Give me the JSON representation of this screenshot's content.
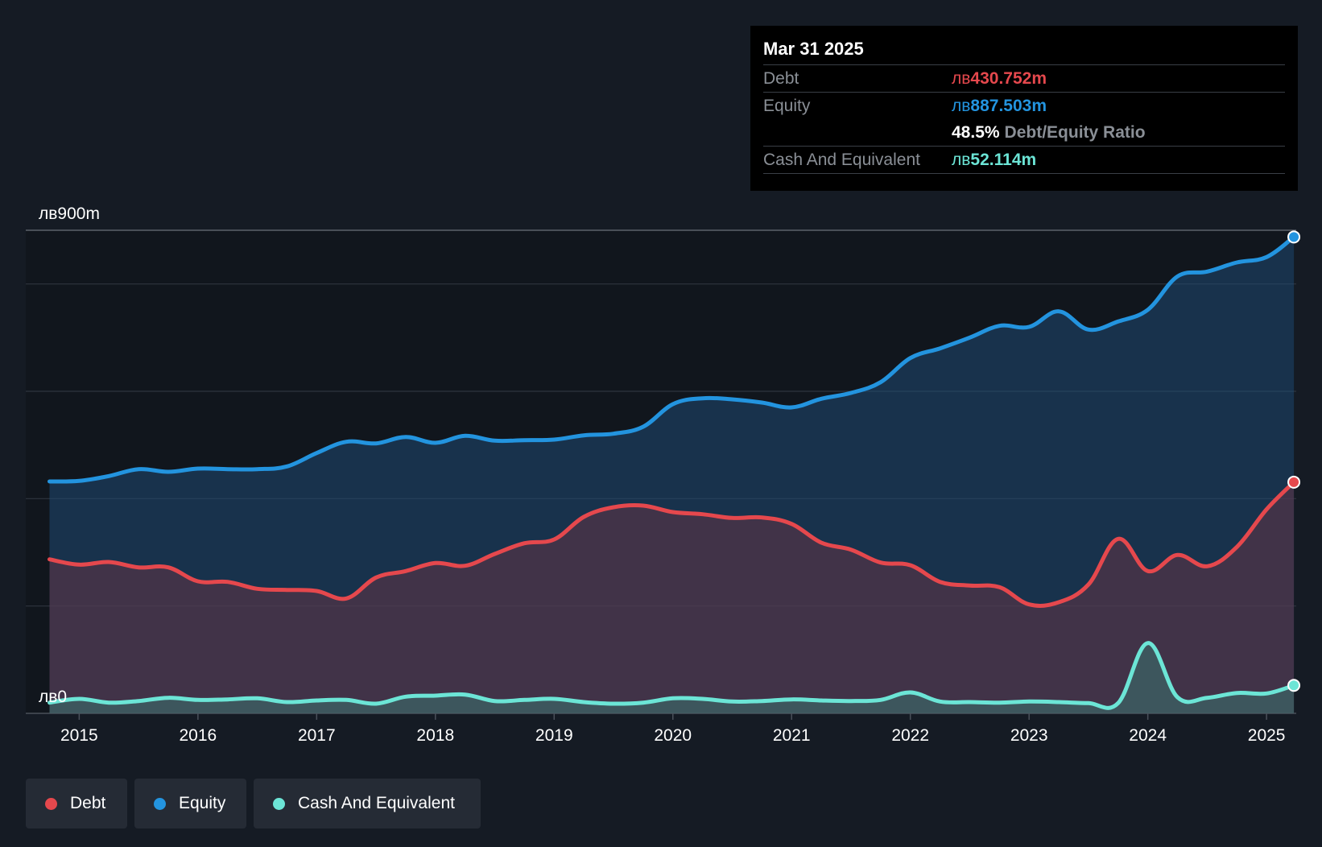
{
  "tooltip": {
    "date": "Mar 31 2025",
    "debt_label": "Debt",
    "debt_currency": "лв",
    "debt_value": "430.752m",
    "equity_label": "Equity",
    "equity_currency": "лв",
    "equity_value": "887.503m",
    "ratio_value": "48.5%",
    "ratio_label": "Debt/Equity Ratio",
    "cash_label": "Cash And Equivalent",
    "cash_currency": "лв",
    "cash_value": "52.114m"
  },
  "legend": {
    "debt": "Debt",
    "equity": "Equity",
    "cash": "Cash And Equivalent"
  },
  "colors": {
    "background": "#151b24",
    "debt": "#e5484d",
    "equity": "#2394df",
    "cash": "#6ce5d6",
    "grid": "#353b45"
  },
  "chart_data": {
    "type": "area",
    "y_top_label": "лв900m",
    "y_bottom_label": "лв0",
    "ylim": [
      0,
      900
    ],
    "gridlines": [
      0,
      200,
      400,
      600,
      800,
      900
    ],
    "x_range": [
      2014.55,
      2025.25
    ],
    "x_ticks": [
      2015,
      2016,
      2017,
      2018,
      2019,
      2020,
      2021,
      2022,
      2023,
      2024,
      2025
    ],
    "x_tick_labels": [
      "2015",
      "2016",
      "2017",
      "2018",
      "2019",
      "2020",
      "2021",
      "2022",
      "2023",
      "2024",
      "2025"
    ],
    "series": [
      {
        "name": "Equity",
        "color": "#2394df",
        "points": [
          [
            2014.75,
            432
          ],
          [
            2015.0,
            433
          ],
          [
            2015.25,
            442
          ],
          [
            2015.5,
            455
          ],
          [
            2015.75,
            450
          ],
          [
            2016.0,
            456
          ],
          [
            2016.25,
            455
          ],
          [
            2016.5,
            455
          ],
          [
            2016.75,
            460
          ],
          [
            2017.0,
            485
          ],
          [
            2017.25,
            506
          ],
          [
            2017.5,
            503
          ],
          [
            2017.75,
            515
          ],
          [
            2018.0,
            504
          ],
          [
            2018.25,
            517
          ],
          [
            2018.5,
            508
          ],
          [
            2018.75,
            509
          ],
          [
            2019.0,
            510
          ],
          [
            2019.25,
            518
          ],
          [
            2019.5,
            521
          ],
          [
            2019.75,
            534
          ],
          [
            2020.0,
            576
          ],
          [
            2020.25,
            587
          ],
          [
            2020.5,
            585
          ],
          [
            2020.75,
            579
          ],
          [
            2021.0,
            570
          ],
          [
            2021.25,
            586
          ],
          [
            2021.5,
            597
          ],
          [
            2021.75,
            617
          ],
          [
            2022.0,
            662
          ],
          [
            2022.25,
            680
          ],
          [
            2022.5,
            700
          ],
          [
            2022.75,
            722
          ],
          [
            2023.0,
            720
          ],
          [
            2023.25,
            749
          ],
          [
            2023.5,
            715
          ],
          [
            2023.75,
            730
          ],
          [
            2024.0,
            752
          ],
          [
            2024.25,
            814
          ],
          [
            2024.5,
            823
          ],
          [
            2024.75,
            840
          ],
          [
            2025.0,
            850
          ],
          [
            2025.23,
            887.503
          ]
        ]
      },
      {
        "name": "Debt",
        "color": "#e5484d",
        "points": [
          [
            2014.75,
            287
          ],
          [
            2015.0,
            277
          ],
          [
            2015.25,
            282
          ],
          [
            2015.5,
            272
          ],
          [
            2015.75,
            272
          ],
          [
            2016.0,
            246
          ],
          [
            2016.25,
            245
          ],
          [
            2016.5,
            232
          ],
          [
            2016.75,
            230
          ],
          [
            2017.0,
            228
          ],
          [
            2017.25,
            214
          ],
          [
            2017.5,
            253
          ],
          [
            2017.75,
            265
          ],
          [
            2018.0,
            280
          ],
          [
            2018.25,
            275
          ],
          [
            2018.5,
            297
          ],
          [
            2018.75,
            317
          ],
          [
            2019.0,
            324
          ],
          [
            2019.25,
            366
          ],
          [
            2019.5,
            384
          ],
          [
            2019.75,
            387
          ],
          [
            2020.0,
            375
          ],
          [
            2020.25,
            371
          ],
          [
            2020.5,
            364
          ],
          [
            2020.75,
            365
          ],
          [
            2021.0,
            353
          ],
          [
            2021.25,
            318
          ],
          [
            2021.5,
            305
          ],
          [
            2021.75,
            281
          ],
          [
            2022.0,
            276
          ],
          [
            2022.25,
            245
          ],
          [
            2022.5,
            238
          ],
          [
            2022.75,
            235
          ],
          [
            2023.0,
            203
          ],
          [
            2023.25,
            207
          ],
          [
            2023.5,
            240
          ],
          [
            2023.75,
            325
          ],
          [
            2024.0,
            265
          ],
          [
            2024.25,
            295
          ],
          [
            2024.5,
            274
          ],
          [
            2024.75,
            310
          ],
          [
            2025.0,
            380
          ],
          [
            2025.23,
            430.752
          ]
        ]
      },
      {
        "name": "Cash And Equivalent",
        "color": "#6ce5d6",
        "points": [
          [
            2014.75,
            20
          ],
          [
            2015.0,
            27
          ],
          [
            2015.25,
            20
          ],
          [
            2015.5,
            23
          ],
          [
            2015.75,
            29
          ],
          [
            2016.0,
            25
          ],
          [
            2016.25,
            26
          ],
          [
            2016.5,
            28
          ],
          [
            2016.75,
            21
          ],
          [
            2017.0,
            24
          ],
          [
            2017.25,
            25
          ],
          [
            2017.5,
            18
          ],
          [
            2017.75,
            31
          ],
          [
            2018.0,
            33
          ],
          [
            2018.25,
            35
          ],
          [
            2018.5,
            23
          ],
          [
            2018.75,
            25
          ],
          [
            2019.0,
            27
          ],
          [
            2019.25,
            21
          ],
          [
            2019.5,
            18
          ],
          [
            2019.75,
            20
          ],
          [
            2020.0,
            28
          ],
          [
            2020.25,
            27
          ],
          [
            2020.5,
            22
          ],
          [
            2020.75,
            23
          ],
          [
            2021.0,
            26
          ],
          [
            2021.25,
            24
          ],
          [
            2021.5,
            23
          ],
          [
            2021.75,
            25
          ],
          [
            2022.0,
            39
          ],
          [
            2022.25,
            22
          ],
          [
            2022.5,
            21
          ],
          [
            2022.75,
            20
          ],
          [
            2023.0,
            22
          ],
          [
            2023.25,
            21
          ],
          [
            2023.5,
            19
          ],
          [
            2023.75,
            19
          ],
          [
            2024.0,
            131
          ],
          [
            2024.25,
            30
          ],
          [
            2024.5,
            29
          ],
          [
            2024.75,
            38
          ],
          [
            2025.0,
            37
          ],
          [
            2025.23,
            52.114
          ]
        ]
      }
    ]
  }
}
